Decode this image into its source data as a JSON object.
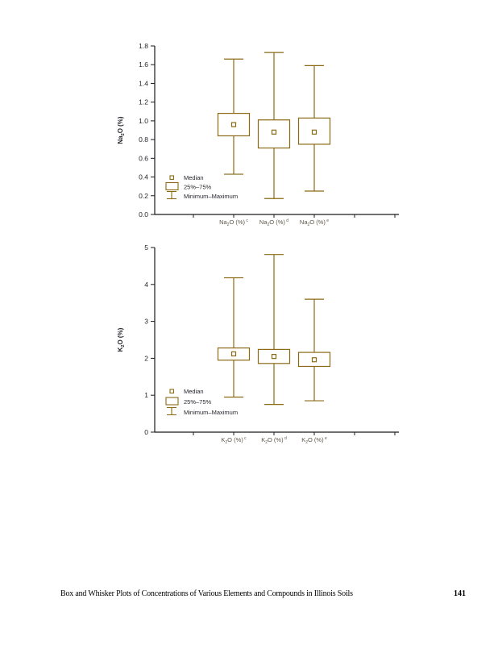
{
  "page": {
    "footer_caption": "Box and Whisker Plots of Concentrations of Various Elements and Compounds in Illinois Soils",
    "page_number": "141"
  },
  "colors": {
    "box": "#8a6a15",
    "axis": "#1a1a1a",
    "tick_label": "#24242c",
    "category_label": "#5d5648",
    "legend_text": "#24242c",
    "axis_title": "#24242c"
  },
  "legend": {
    "median": "Median",
    "box": "25%–75%",
    "minmax": "Minimum–Maximum"
  },
  "chart_data": [
    {
      "type": "box",
      "title": "",
      "ylabel": {
        "pre": "Na",
        "sub": "2",
        "post": "O (%)"
      },
      "ylim": [
        0.0,
        1.8
      ],
      "ytick_step": 0.2,
      "ytick_labels": [
        "0.0",
        "0.2",
        "0.4",
        "0.6",
        "0.8",
        "1.0",
        "1.2",
        "1.4",
        "1.6",
        "1.8"
      ],
      "grid": false,
      "legend_position": "lower-left",
      "categories": [
        {
          "pre": "Na",
          "sub": "2",
          "post": "O (%)",
          "sup": "c"
        },
        {
          "pre": "Na",
          "sub": "2",
          "post": "O (%)",
          "sup": "d"
        },
        {
          "pre": "Na",
          "sub": "2",
          "post": "O (%)",
          "sup": "e"
        }
      ],
      "series": [
        {
          "name": "Na2O (%) c",
          "min": 0.43,
          "q1": 0.84,
          "median": 0.96,
          "q3": 1.08,
          "max": 1.66
        },
        {
          "name": "Na2O (%) d",
          "min": 0.17,
          "q1": 0.71,
          "median": 0.88,
          "q3": 1.01,
          "max": 1.73
        },
        {
          "name": "Na2O (%) e",
          "min": 0.25,
          "q1": 0.75,
          "median": 0.88,
          "q3": 1.03,
          "max": 1.59
        }
      ]
    },
    {
      "type": "box",
      "title": "",
      "ylabel": {
        "pre": "K",
        "sub": "2",
        "post": "O (%)"
      },
      "ylim": [
        0,
        5
      ],
      "ytick_step": 1,
      "ytick_labels": [
        "0",
        "1",
        "2",
        "3",
        "4",
        "5"
      ],
      "grid": false,
      "legend_position": "lower-left",
      "categories": [
        {
          "pre": "K",
          "sub": "2",
          "post": "O (%)",
          "sup": "c"
        },
        {
          "pre": "K",
          "sub": "2",
          "post": "O (%)",
          "sup": "d"
        },
        {
          "pre": "K",
          "sub": "2",
          "post": "O (%)",
          "sup": "e"
        }
      ],
      "series": [
        {
          "name": "K2O (%) c",
          "min": 0.95,
          "q1": 1.95,
          "median": 2.12,
          "q3": 2.28,
          "max": 4.18
        },
        {
          "name": "K2O (%) d",
          "min": 0.75,
          "q1": 1.86,
          "median": 2.05,
          "q3": 2.24,
          "max": 4.81
        },
        {
          "name": "K2O (%) e",
          "min": 0.85,
          "q1": 1.78,
          "median": 1.96,
          "q3": 2.16,
          "max": 3.6
        }
      ]
    }
  ]
}
